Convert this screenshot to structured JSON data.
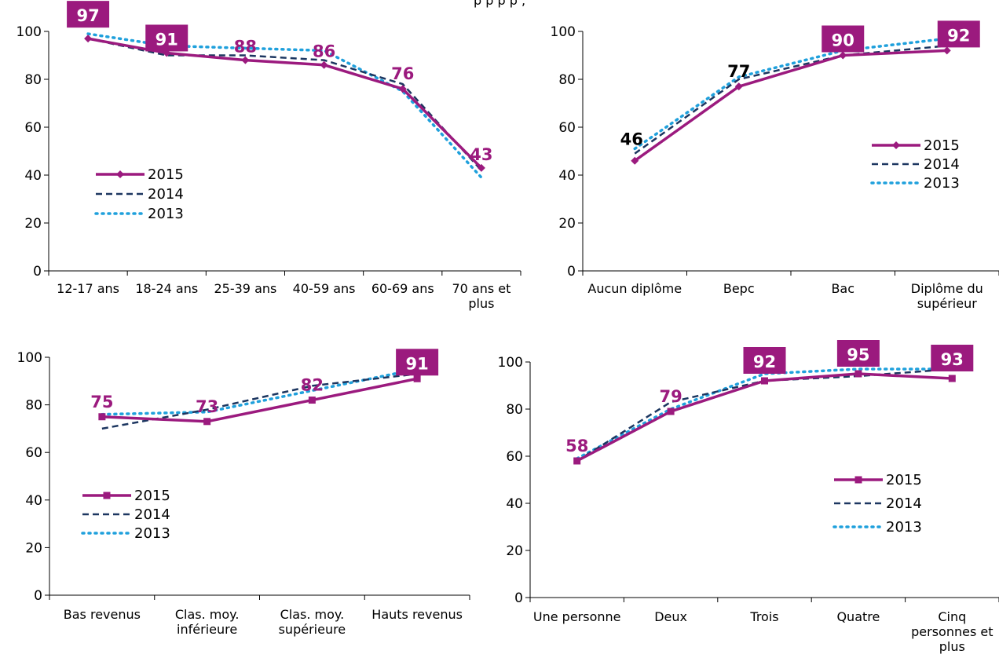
{
  "page_title_partial": "p                              p  p                             p  ,",
  "colors": {
    "s2015": "#9b1a7e",
    "s2014": "#1c3660",
    "s2013": "#1fa0dc",
    "label_boxed_bg": "#9b1a7e",
    "label_boxed_text": "#ffffff"
  },
  "chart_data": [
    {
      "type": "line",
      "categories": [
        "12-17 ans",
        "18-24 ans",
        "25-39 ans",
        "40-59 ans",
        "60-69 ans",
        "70 ans et plus"
      ],
      "ylim": [
        0,
        100
      ],
      "yticks": [
        "0",
        "20",
        "40",
        "60",
        "80",
        "100"
      ],
      "grid": false,
      "legend": "left",
      "series": [
        {
          "name": "2015",
          "values": [
            97,
            91,
            88,
            86,
            76,
            43
          ]
        },
        {
          "name": "2014",
          "values": [
            97,
            90,
            90,
            88,
            78,
            42
          ]
        },
        {
          "name": "2013",
          "values": [
            99,
            94,
            93,
            92,
            75,
            39
          ]
        }
      ],
      "data_labels": [
        {
          "text": "97",
          "index": 0,
          "boxed": true
        },
        {
          "text": "91",
          "index": 1,
          "boxed": true
        },
        {
          "text": "88",
          "index": 2,
          "boxed": false
        },
        {
          "text": "86",
          "index": 3,
          "boxed": false
        },
        {
          "text": "76",
          "index": 4,
          "boxed": false
        },
        {
          "text": "43",
          "index": 5,
          "boxed": false
        }
      ]
    },
    {
      "type": "line",
      "categories": [
        "Aucun diplôme",
        "Bepc",
        "Bac",
        "Diplôme du supérieur"
      ],
      "ylim": [
        0,
        100
      ],
      "yticks": [
        "0",
        "20",
        "40",
        "60",
        "80",
        "100"
      ],
      "grid": false,
      "legend": "right",
      "series": [
        {
          "name": "2015",
          "values": [
            46,
            77,
            90,
            92
          ]
        },
        {
          "name": "2014",
          "values": [
            49,
            80,
            90,
            94
          ]
        },
        {
          "name": "2013",
          "values": [
            51,
            81,
            92,
            97
          ]
        }
      ],
      "data_labels": [
        {
          "text": "46",
          "index": 0,
          "boxed": false,
          "dark": true
        },
        {
          "text": "77",
          "index": 1,
          "boxed": false,
          "dark": true
        },
        {
          "text": "90",
          "index": 2,
          "boxed": true
        },
        {
          "text": "92",
          "index": 3,
          "boxed": true
        }
      ]
    },
    {
      "type": "line",
      "categories": [
        "Bas revenus",
        "Clas. moy. inférieure",
        "Clas. moy. supérieure",
        "Hauts revenus"
      ],
      "ylim": [
        0,
        100
      ],
      "yticks": [
        "0",
        "20",
        "40",
        "60",
        "80",
        "100"
      ],
      "grid": false,
      "legend": "left",
      "series": [
        {
          "name": "2015",
          "values": [
            75,
            73,
            82,
            91
          ]
        },
        {
          "name": "2014",
          "values": [
            70,
            78,
            88,
            93
          ]
        },
        {
          "name": "2013",
          "values": [
            76,
            77,
            86,
            95
          ]
        }
      ],
      "data_labels": [
        {
          "text": "75",
          "index": 0,
          "boxed": false
        },
        {
          "text": "73",
          "index": 1,
          "boxed": false
        },
        {
          "text": "82",
          "index": 2,
          "boxed": false
        },
        {
          "text": "91",
          "index": 3,
          "boxed": true
        }
      ]
    },
    {
      "type": "line",
      "categories": [
        "Une personne",
        "Deux",
        "Trois",
        "Quatre",
        "Cinq personnes et plus"
      ],
      "ylim": [
        0,
        100
      ],
      "yticks": [
        "0",
        "20",
        "40",
        "60",
        "80",
        "100"
      ],
      "grid": false,
      "legend": "right",
      "series": [
        {
          "name": "2015",
          "values": [
            58,
            79,
            92,
            95,
            93
          ]
        },
        {
          "name": "2014",
          "values": [
            58,
            83,
            92,
            94,
            97
          ]
        },
        {
          "name": "2013",
          "values": [
            59,
            80,
            95,
            97,
            97
          ]
        }
      ],
      "data_labels": [
        {
          "text": "58",
          "index": 0,
          "boxed": false
        },
        {
          "text": "79",
          "index": 1,
          "boxed": false
        },
        {
          "text": "92",
          "index": 2,
          "boxed": true
        },
        {
          "text": "95",
          "index": 3,
          "boxed": true
        },
        {
          "text": "93",
          "index": 4,
          "boxed": true
        }
      ]
    }
  ]
}
